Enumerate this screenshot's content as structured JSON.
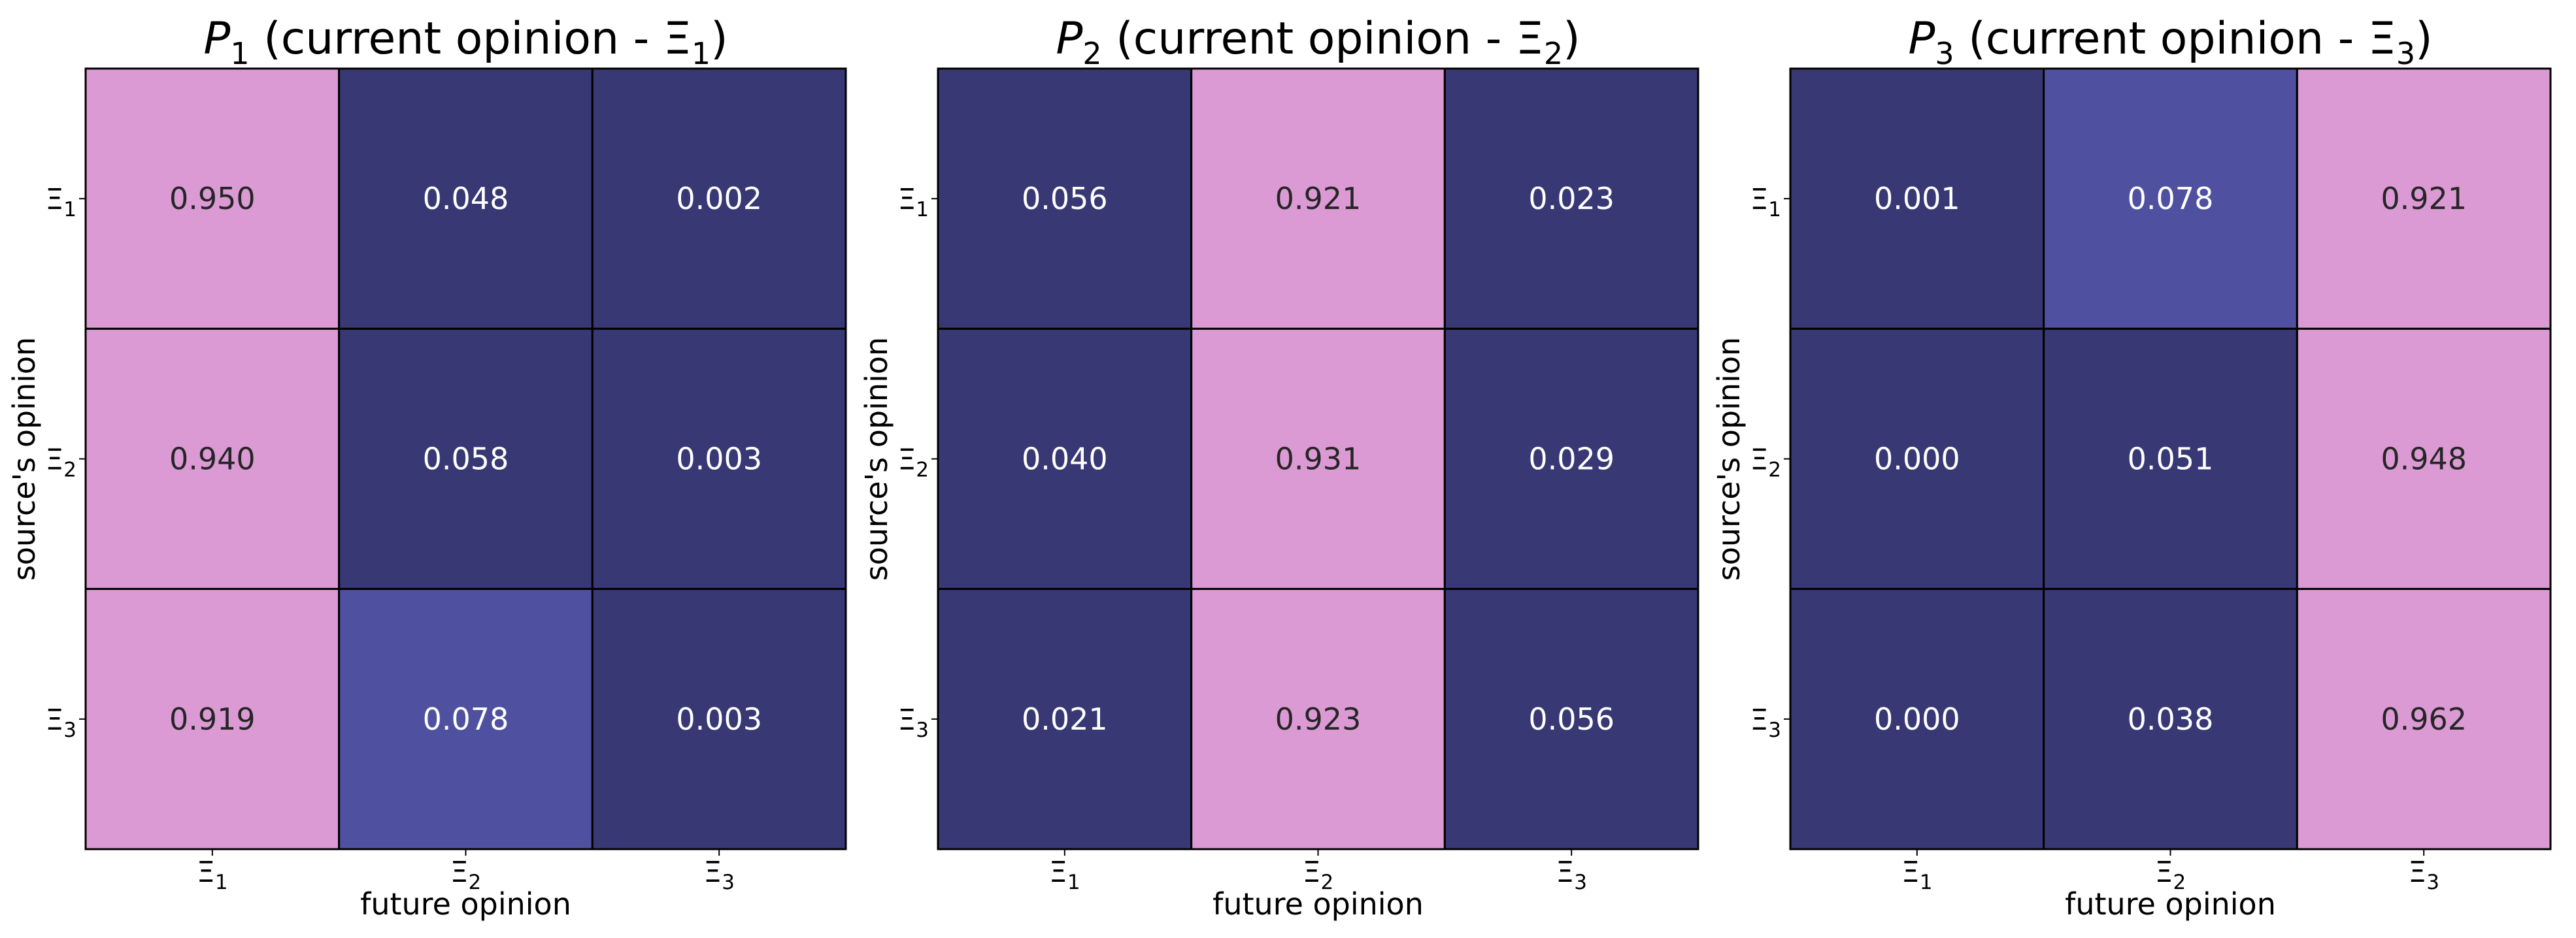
{
  "chart_data": [
    {
      "type": "heatmap",
      "title": "P1 (current opinion - Ξ1)",
      "title_parts": {
        "var": "P",
        "var_sub": "1",
        "mid": " (current opinion - Ξ",
        "end_sub": "1",
        "close": ")"
      },
      "xlabel": "future opinion",
      "ylabel": "source's opinion",
      "x_tick_labels": [
        "Ξ1",
        "Ξ2",
        "Ξ3"
      ],
      "y_tick_labels": [
        "Ξ1",
        "Ξ2",
        "Ξ3"
      ],
      "values": [
        [
          0.95,
          0.048,
          0.002
        ],
        [
          0.94,
          0.058,
          0.003
        ],
        [
          0.919,
          0.078,
          0.003
        ]
      ],
      "value_labels": [
        [
          "0.950",
          "0.048",
          "0.002"
        ],
        [
          "0.940",
          "0.058",
          "0.003"
        ],
        [
          "0.919",
          "0.078",
          "0.003"
        ]
      ]
    },
    {
      "type": "heatmap",
      "title": "P2 (current opinion - Ξ2)",
      "title_parts": {
        "var": "P",
        "var_sub": "2",
        "mid": " (current opinion - Ξ",
        "end_sub": "2",
        "close": ")"
      },
      "xlabel": "future opinion",
      "ylabel": "source's opinion",
      "x_tick_labels": [
        "Ξ1",
        "Ξ2",
        "Ξ3"
      ],
      "y_tick_labels": [
        "Ξ1",
        "Ξ2",
        "Ξ3"
      ],
      "values": [
        [
          0.056,
          0.921,
          0.023
        ],
        [
          0.04,
          0.931,
          0.029
        ],
        [
          0.021,
          0.923,
          0.056
        ]
      ],
      "value_labels": [
        [
          "0.056",
          "0.921",
          "0.023"
        ],
        [
          "0.040",
          "0.931",
          "0.029"
        ],
        [
          "0.021",
          "0.923",
          "0.056"
        ]
      ]
    },
    {
      "type": "heatmap",
      "title": "P3 (current opinion - Ξ3)",
      "title_parts": {
        "var": "P",
        "var_sub": "3",
        "mid": " (current opinion - Ξ",
        "end_sub": "3",
        "close": ")"
      },
      "xlabel": "future opinion",
      "ylabel": "source's opinion",
      "x_tick_labels": [
        "Ξ1",
        "Ξ2",
        "Ξ3"
      ],
      "y_tick_labels": [
        "Ξ1",
        "Ξ2",
        "Ξ3"
      ],
      "values": [
        [
          0.001,
          0.078,
          0.921
        ],
        [
          0.0,
          0.051,
          0.948
        ],
        [
          0.0,
          0.038,
          0.962
        ]
      ],
      "value_labels": [
        [
          "0.001",
          "0.078",
          "0.921"
        ],
        [
          "0.000",
          "0.051",
          "0.948"
        ],
        [
          "0.000",
          "0.038",
          "0.962"
        ]
      ]
    }
  ],
  "colors": {
    "low": "#373874",
    "mid": "#5052a2",
    "high": "#dc9ad4",
    "text_light": "#ffffff",
    "text_dark": "#262626",
    "grid": "#000000"
  }
}
